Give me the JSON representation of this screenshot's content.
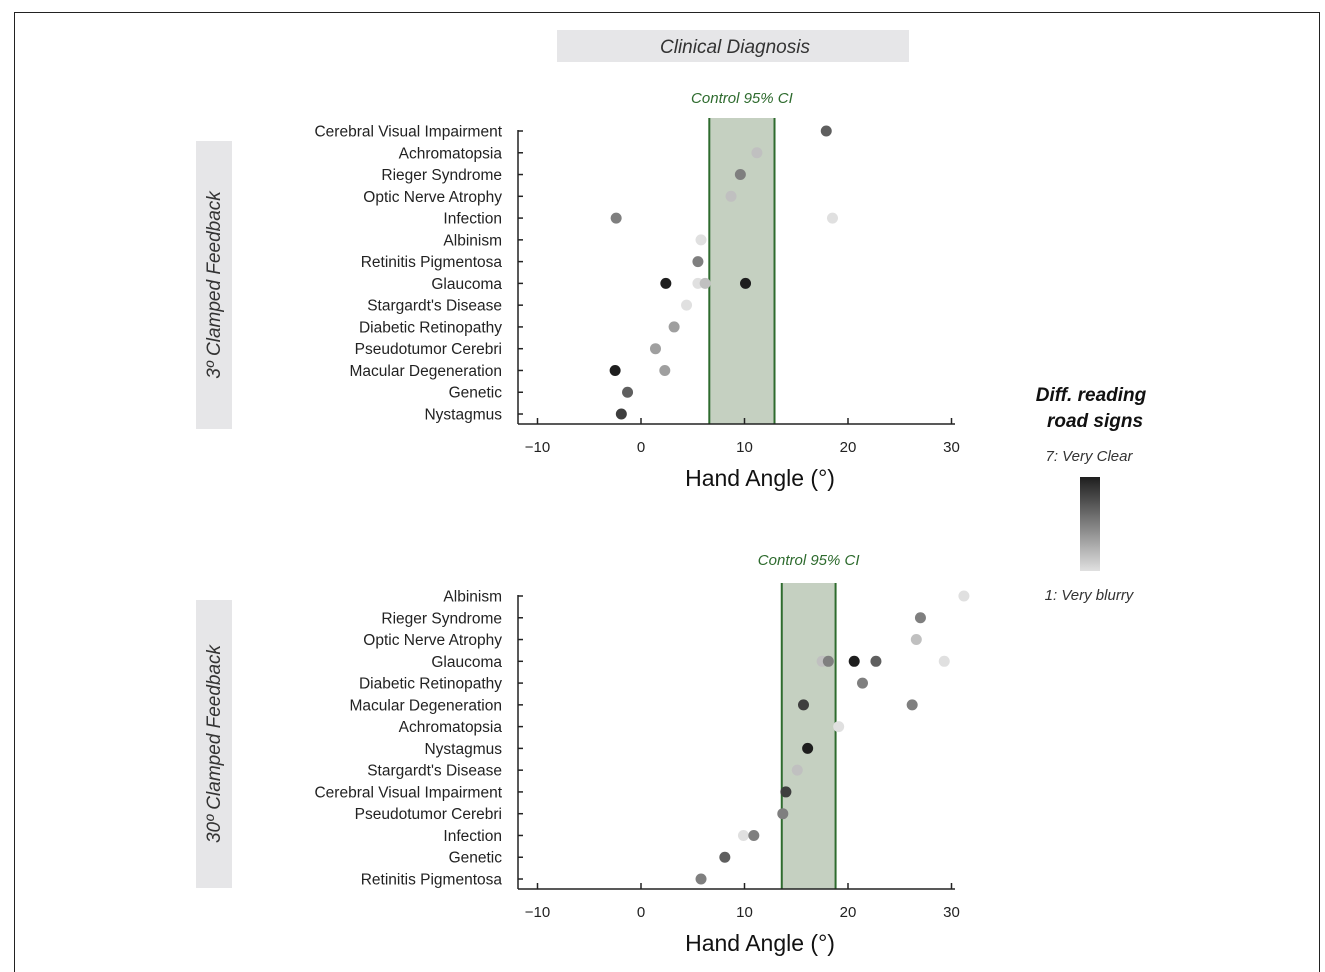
{
  "header": {
    "title": "Clinical Diagnosis"
  },
  "legend": {
    "title_line1": "Diff. reading",
    "title_line2": "road signs",
    "high_label": "7: Very Clear",
    "low_label": "1: Very blurry",
    "color_high": "#1e1e1e",
    "color_low": "#e0e0e0"
  },
  "colors": {
    "ci_fill": "#c5d0c1",
    "ci_edge": "#2e6b2e",
    "ci_text": "#2e6b2e",
    "strip_bg": "#e6e6e8"
  },
  "chart_data": [
    {
      "type": "scatter",
      "panel_label": "3º Clamped Feedback",
      "xlabel": "Hand Angle (°)",
      "xlim": [
        -12,
        30
      ],
      "xticks": [
        "−10",
        "0",
        "10",
        "20",
        "30"
      ],
      "xtick_values": [
        -10,
        0,
        10,
        20,
        30
      ],
      "ci_label": "Control 95% CI",
      "ci_range": [
        6.6,
        12.9
      ],
      "categories": [
        "Cerebral Visual Impairment",
        "Achromatopsia",
        "Rieger Syndrome",
        "Optic Nerve Atrophy",
        "Infection",
        "Albinism",
        "Retinitis Pigmentosa",
        "Glaucoma",
        "Stargardt's Disease",
        "Diabetic Retinopathy",
        "Pseudotumor Cerebri",
        "Macular Degeneration",
        "Genetic",
        "Nystagmus"
      ],
      "points": [
        {
          "category": "Cerebral Visual Impairment",
          "x": 17.9,
          "rating": 3
        },
        {
          "category": "Achromatopsia",
          "x": 11.2,
          "rating": 6
        },
        {
          "category": "Rieger Syndrome",
          "x": 9.6,
          "rating": 4
        },
        {
          "category": "Optic Nerve Atrophy",
          "x": 8.7,
          "rating": 6
        },
        {
          "category": "Infection",
          "x": -2.4,
          "rating": 4
        },
        {
          "category": "Infection",
          "x": 18.5,
          "rating": 7
        },
        {
          "category": "Albinism",
          "x": 5.8,
          "rating": 7
        },
        {
          "category": "Retinitis Pigmentosa",
          "x": 5.5,
          "rating": 4
        },
        {
          "category": "Glaucoma",
          "x": 2.4,
          "rating": 1
        },
        {
          "category": "Glaucoma",
          "x": 5.5,
          "rating": 7
        },
        {
          "category": "Glaucoma",
          "x": 6.2,
          "rating": 6
        },
        {
          "category": "Glaucoma",
          "x": 10.1,
          "rating": 1
        },
        {
          "category": "Stargardt's Disease",
          "x": 4.4,
          "rating": 7
        },
        {
          "category": "Diabetic Retinopathy",
          "x": 3.2,
          "rating": 5
        },
        {
          "category": "Pseudotumor Cerebri",
          "x": 1.4,
          "rating": 5
        },
        {
          "category": "Macular Degeneration",
          "x": -2.5,
          "rating": 1
        },
        {
          "category": "Macular Degeneration",
          "x": 2.3,
          "rating": 5
        },
        {
          "category": "Genetic",
          "x": -1.3,
          "rating": 3
        },
        {
          "category": "Nystagmus",
          "x": -1.9,
          "rating": 2
        }
      ]
    },
    {
      "type": "scatter",
      "panel_label": "30º Clamped Feedback",
      "xlabel": "Hand Angle (°)",
      "xlim": [
        -12,
        30
      ],
      "xticks": [
        "−10",
        "0",
        "10",
        "20",
        "30"
      ],
      "xtick_values": [
        -10,
        0,
        10,
        20,
        30
      ],
      "ci_label": "Control 95% CI",
      "ci_range": [
        13.6,
        18.8
      ],
      "categories": [
        "Albinism",
        "Rieger Syndrome",
        "Optic Nerve Atrophy",
        "Glaucoma",
        "Diabetic Retinopathy",
        "Macular Degeneration",
        "Achromatopsia",
        "Nystagmus",
        "Stargardt's Disease",
        "Cerebral Visual Impairment",
        "Pseudotumor Cerebri",
        "Infection",
        "Genetic",
        "Retinitis Pigmentosa"
      ],
      "points": [
        {
          "category": "Albinism",
          "x": 31.2,
          "rating": 7
        },
        {
          "category": "Rieger Syndrome",
          "x": 27.0,
          "rating": 4
        },
        {
          "category": "Optic Nerve Atrophy",
          "x": 26.6,
          "rating": 6
        },
        {
          "category": "Glaucoma",
          "x": 17.5,
          "rating": 6
        },
        {
          "category": "Glaucoma",
          "x": 18.1,
          "rating": 4
        },
        {
          "category": "Glaucoma",
          "x": 20.6,
          "rating": 1
        },
        {
          "category": "Glaucoma",
          "x": 22.7,
          "rating": 3
        },
        {
          "category": "Glaucoma",
          "x": 29.3,
          "rating": 7
        },
        {
          "category": "Diabetic Retinopathy",
          "x": 21.4,
          "rating": 4
        },
        {
          "category": "Macular Degeneration",
          "x": 15.7,
          "rating": 2
        },
        {
          "category": "Macular Degeneration",
          "x": 26.2,
          "rating": 4
        },
        {
          "category": "Achromatopsia",
          "x": 19.1,
          "rating": 7
        },
        {
          "category": "Nystagmus",
          "x": 16.1,
          "rating": 1
        },
        {
          "category": "Stargardt's Disease",
          "x": 15.1,
          "rating": 6
        },
        {
          "category": "Cerebral Visual Impairment",
          "x": 14.0,
          "rating": 2
        },
        {
          "category": "Pseudotumor Cerebri",
          "x": 13.7,
          "rating": 4
        },
        {
          "category": "Infection",
          "x": 9.9,
          "rating": 7
        },
        {
          "category": "Infection",
          "x": 10.9,
          "rating": 4
        },
        {
          "category": "Genetic",
          "x": 8.1,
          "rating": 3
        },
        {
          "category": "Retinitis Pigmentosa",
          "x": 5.8,
          "rating": 4
        }
      ]
    }
  ]
}
